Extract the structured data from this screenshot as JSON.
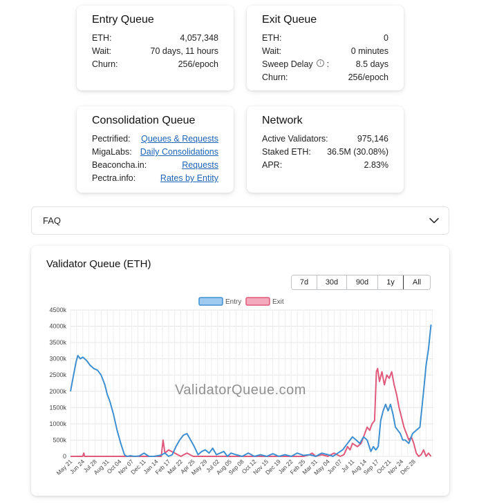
{
  "cards": {
    "entry": {
      "title": "Entry Queue",
      "rows": [
        {
          "label": "ETH:",
          "value": "4,057,348"
        },
        {
          "label": "Wait:",
          "value": "70 days, 11 hours"
        },
        {
          "label": "Churn:",
          "value": "256/epoch"
        }
      ]
    },
    "exit": {
      "title": "Exit Queue",
      "rows": [
        {
          "label": "ETH:",
          "value": "0"
        },
        {
          "label": "Wait:",
          "value": "0 minutes"
        },
        {
          "label": "Sweep Delay",
          "value": "8.5 days",
          "suffix": ":"
        },
        {
          "label": "Churn:",
          "value": "256/epoch"
        }
      ]
    },
    "consolidation": {
      "title": "Consolidation Queue",
      "rows": [
        {
          "label": "Pectrified:",
          "link": "Queues & Requests"
        },
        {
          "label": "MigaLabs:",
          "link": "Daily Consolidations"
        },
        {
          "label": "Beaconcha.in:",
          "link": "Requests"
        },
        {
          "label": "Pectra.info:",
          "link": "Rates by Entity"
        }
      ]
    },
    "network": {
      "title": "Network",
      "rows": [
        {
          "label": "Active Validators:",
          "value": "975,146"
        },
        {
          "label": "Staked ETH:",
          "value": "36.5M (30.08%)"
        },
        {
          "label": "APR:",
          "value": "2.83%"
        }
      ]
    }
  },
  "info_icon_glyph": "i",
  "faq": {
    "label": "FAQ",
    "icon": "chevron-down-icon"
  },
  "chart": {
    "title": "Validator Queue (ETH)",
    "ranges": [
      "7d",
      "30d",
      "90d",
      "1y",
      "All"
    ],
    "active_range": "All",
    "watermark": "ValidatorQueue.com"
  },
  "chart_data": {
    "type": "line",
    "title": "Validator Queue (ETH)",
    "xlabel": "",
    "ylabel": "",
    "ylim": [
      0,
      4500000
    ],
    "yticks": [
      0,
      500000,
      1000000,
      1500000,
      2000000,
      2500000,
      3000000,
      3500000,
      4000000,
      4500000
    ],
    "ytick_labels": [
      "0",
      "500k",
      "1000k",
      "1500k",
      "2000k",
      "2500k",
      "3000k",
      "3500k",
      "4000k",
      "4500k"
    ],
    "xtick_labels": [
      "May 21",
      "Jun 24",
      "Jul 28",
      "Aug 31",
      "Oct 04",
      "Nov 07",
      "Dec 11",
      "Jan 14",
      "Feb 17",
      "Mar 22",
      "Apr 25",
      "May 29",
      "Jul 02",
      "Aug 05",
      "Sep 08",
      "Oct 12",
      "Nov 15",
      "Dec 19",
      "Jan 22",
      "Feb 25",
      "Mar 31",
      "May 04",
      "Jun 07",
      "Jul 11",
      "Aug 14",
      "Sep 17",
      "Oct 21",
      "Nov 24",
      "Dec 28"
    ],
    "grid": true,
    "legend_position": "top",
    "x_unit": "tick index (0 = May 21 ... 28 = Dec 28)",
    "series": [
      {
        "name": "Entry",
        "color": "#3d8fd1",
        "fill": "#9fcbf0",
        "x": [
          0,
          0.2,
          0.45,
          0.6,
          0.8,
          1,
          1.3,
          1.6,
          1.9,
          2.2,
          2.5,
          2.8,
          3,
          3.2,
          3.5,
          3.8,
          4.1,
          4.4,
          4.6,
          4.9,
          5.2,
          5.6,
          6,
          6.4,
          6.8,
          7.1,
          7.4,
          7.7,
          8,
          8.3,
          8.6,
          8.9,
          9.2,
          9.5,
          9.8,
          10.1,
          10.4,
          10.7,
          11,
          11.3,
          11.6,
          11.9,
          12.2,
          12.5,
          12.8,
          13.1,
          13.5,
          14,
          14.5,
          15,
          15.5,
          16,
          16.5,
          17,
          17.5,
          18,
          18.5,
          19,
          19.5,
          20,
          20.5,
          21,
          21.4,
          21.8,
          22.2,
          22.6,
          23,
          23.3,
          23.6,
          23.9,
          24.2,
          24.5,
          24.7,
          24.9,
          25.1,
          25.3,
          25.5,
          25.7,
          25.9,
          26.1,
          26.3,
          26.5,
          26.7,
          26.9,
          27.1,
          27.3,
          27.6,
          27.9,
          28.2,
          28.5,
          28.8,
          29,
          29.2,
          29.4
        ],
        "values": [
          2000000,
          2400000,
          2900000,
          3100000,
          3000000,
          3050000,
          2950000,
          2800000,
          2700000,
          2650000,
          2500000,
          2200000,
          1900000,
          1700000,
          1300000,
          800000,
          400000,
          50000,
          0,
          20000,
          0,
          10000,
          100000,
          0,
          0,
          20000,
          40000,
          100000,
          0,
          50000,
          300000,
          500000,
          650000,
          700000,
          500000,
          300000,
          50000,
          150000,
          200000,
          100000,
          250000,
          50000,
          100000,
          150000,
          0,
          100000,
          50000,
          0,
          100000,
          0,
          50000,
          0,
          80000,
          0,
          50000,
          0,
          100000,
          30000,
          50000,
          0,
          100000,
          50000,
          0,
          100000,
          200000,
          400000,
          600000,
          500000,
          400000,
          600000,
          500000,
          150000,
          300000,
          200000,
          300000,
          1100000,
          1400000,
          1600000,
          1400000,
          1600000,
          1300000,
          900000,
          800000,
          700000,
          500000,
          500000,
          400000,
          700000,
          800000,
          900000,
          2000000,
          2800000,
          3300000,
          4050000
        ]
      },
      {
        "name": "Exit",
        "color": "#e0587a",
        "fill": "#f3aabd",
        "x": [
          0,
          1,
          1.08,
          1.15,
          2,
          3,
          4,
          5,
          6,
          7,
          7.4,
          7.55,
          7.7,
          8,
          8.5,
          9,
          9.5,
          10,
          11,
          12,
          13,
          14,
          15,
          16,
          17,
          18,
          19,
          19.5,
          19.7,
          20,
          20.5,
          21,
          21.5,
          22,
          22.3,
          22.6,
          22.8,
          23,
          23.4,
          23.7,
          24,
          24.2,
          24.4,
          24.6,
          24.8,
          24.95,
          25.05,
          25.2,
          25.4,
          25.6,
          25.8,
          26,
          26.2,
          26.4,
          26.6,
          26.8,
          27,
          27.2,
          27.4,
          27.6,
          27.8,
          28,
          28.2,
          28.4,
          28.6,
          28.8,
          29,
          29.2,
          29.4
        ],
        "values": [
          0,
          0,
          100000,
          0,
          0,
          0,
          0,
          0,
          0,
          0,
          0,
          500000,
          100000,
          200000,
          100000,
          0,
          100000,
          0,
          0,
          0,
          0,
          0,
          0,
          0,
          0,
          0,
          0,
          50000,
          100000,
          0,
          50000,
          0,
          100000,
          0,
          50000,
          300000,
          200000,
          400000,
          300000,
          400000,
          700000,
          900000,
          800000,
          1000000,
          1100000,
          2600000,
          2700000,
          2300000,
          2600000,
          2200000,
          2500000,
          2400000,
          2600000,
          2200000,
          1900000,
          1500000,
          1200000,
          900000,
          700000,
          500000,
          600000,
          400000,
          100000,
          0,
          50000,
          200000,
          0,
          100000,
          0
        ]
      }
    ]
  }
}
